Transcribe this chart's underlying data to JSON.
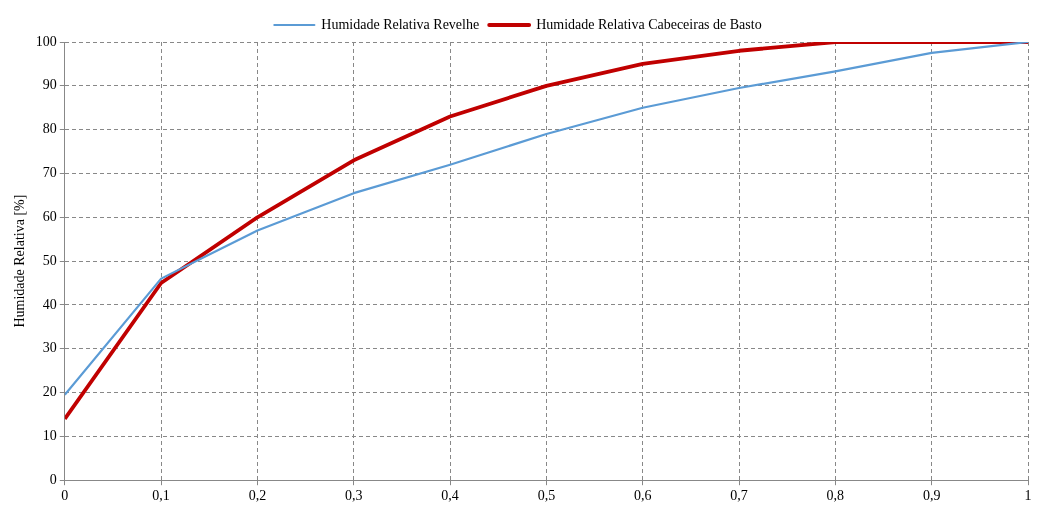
{
  "chart_data": {
    "type": "line",
    "ylabel": "Humidade Relativa [%]",
    "x": [
      0,
      0.1,
      0.2,
      0.3,
      0.4,
      0.5,
      0.6,
      0.7,
      0.8,
      0.9,
      1
    ],
    "series": [
      {
        "name": "Humidade Relativa Revelhe",
        "color": "#5b9bd5",
        "values": [
          19.5,
          46,
          57,
          65.5,
          72,
          79,
          85,
          89.5,
          93.3,
          97.5,
          100
        ]
      },
      {
        "name": "Humidade Relativa Cabeceiras de Basto",
        "color": "#c00000",
        "values": [
          14,
          45,
          60,
          73,
          83,
          90,
          95,
          98,
          100,
          100,
          100
        ]
      }
    ],
    "xlim": [
      0,
      1
    ],
    "xticks": [
      0,
      {
        "value": 0.1,
        "label": "0,1"
      },
      {
        "value": 0.2,
        "label": "0,2"
      },
      {
        "value": 0.3,
        "label": "0,3"
      },
      {
        "value": 0.4,
        "label": "0,4"
      },
      {
        "value": 0.5,
        "label": "0,5"
      },
      {
        "value": 0.6,
        "label": "0,6"
      },
      {
        "value": 0.7,
        "label": "0,7"
      },
      {
        "value": 0.8,
        "label": "0,8"
      },
      {
        "value": 0.9,
        "label": "0,9"
      },
      1
    ],
    "ylim": [
      0,
      100
    ],
    "yticks": [
      0,
      10,
      20,
      30,
      40,
      50,
      60,
      70,
      80,
      90,
      100
    ],
    "grid": true,
    "legend": "top",
    "marker": "none",
    "line_style": "solid"
  }
}
